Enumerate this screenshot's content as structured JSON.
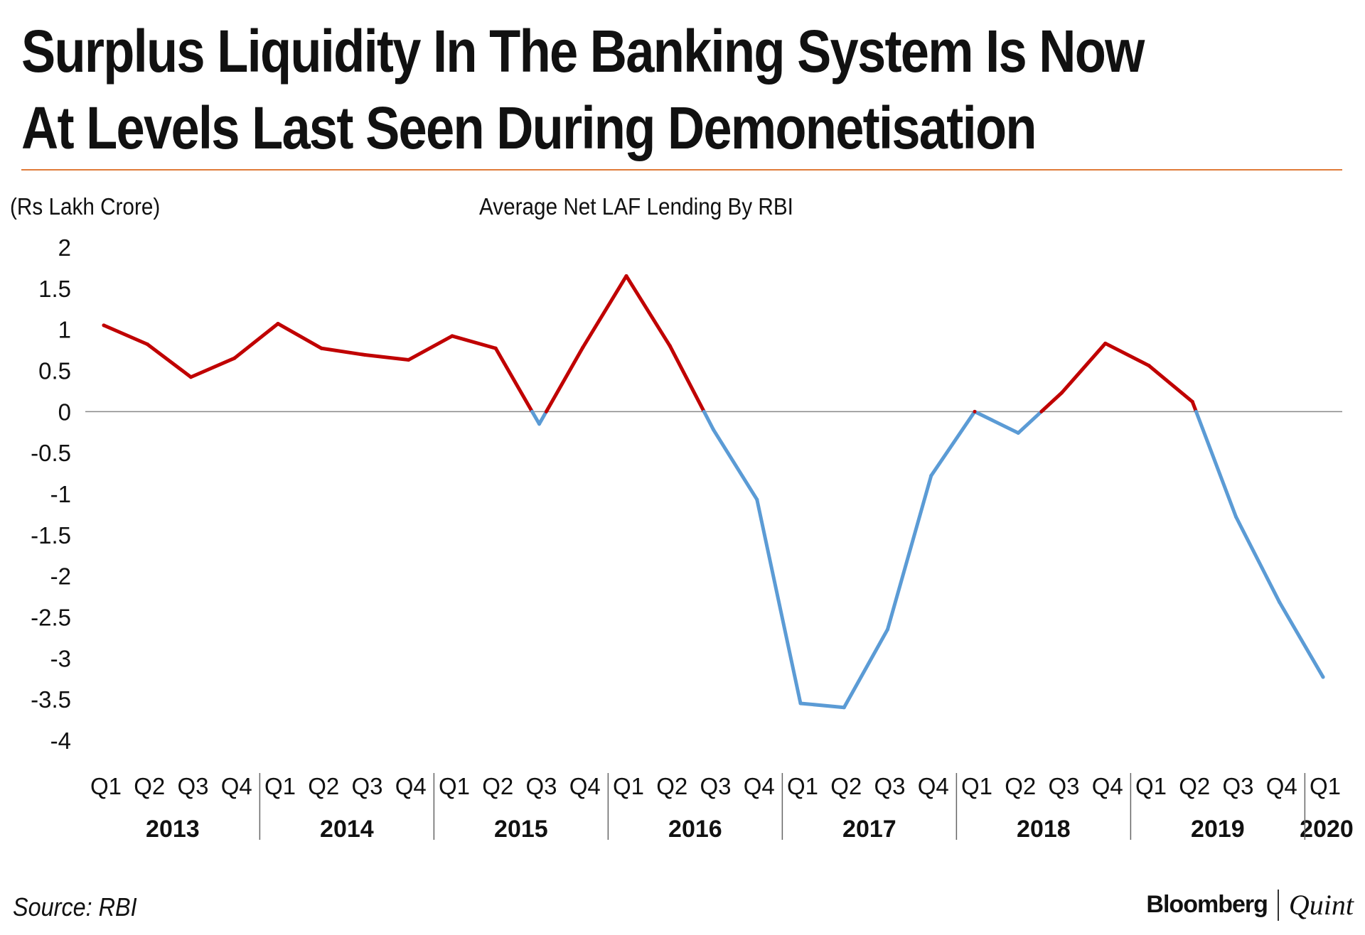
{
  "header": {
    "title_line1": "Surplus Liquidity In The Banking System Is Now",
    "title_line2": "At Levels Last Seen During Demonetisation"
  },
  "footer": {
    "source": "Source: RBI",
    "logo_primary": "Bloomberg",
    "logo_secondary": "Quint"
  },
  "colors": {
    "accent_rule": "#e07b39",
    "positive_line": "#c00000",
    "negative_line": "#5b9bd5",
    "zero_line": "#888888"
  },
  "chart_data": {
    "type": "line",
    "title": "Average Net LAF Lending By RBI",
    "ylabel": "(Rs Lakh Crore)",
    "xlabel": "",
    "ylim": [
      -4,
      2
    ],
    "yticks": [
      "2",
      "1.5",
      "1",
      "0.5",
      "0",
      "-0.5",
      "-1",
      "-1.5",
      "-2",
      "-2.5",
      "-3",
      "-3.5",
      "-4"
    ],
    "categories": [
      "Q1",
      "Q2",
      "Q3",
      "Q4",
      "Q1",
      "Q2",
      "Q3",
      "Q4",
      "Q1",
      "Q2",
      "Q3",
      "Q4",
      "Q1",
      "Q2",
      "Q3",
      "Q4",
      "Q1",
      "Q2",
      "Q3",
      "Q4",
      "Q1",
      "Q2",
      "Q3",
      "Q4",
      "Q1",
      "Q2",
      "Q3",
      "Q4",
      "Q1"
    ],
    "years": [
      {
        "label": "2013",
        "start": 0,
        "count": 4
      },
      {
        "label": "2014",
        "start": 4,
        "count": 4
      },
      {
        "label": "2015",
        "start": 8,
        "count": 4
      },
      {
        "label": "2016",
        "start": 12,
        "count": 4
      },
      {
        "label": "2017",
        "start": 16,
        "count": 4
      },
      {
        "label": "2018",
        "start": 20,
        "count": 4
      },
      {
        "label": "2019",
        "start": 24,
        "count": 4
      },
      {
        "label": "2020",
        "start": 28,
        "count": 1
      }
    ],
    "series": [
      {
        "name": "Average Net LAF Lending",
        "values": [
          1.05,
          0.82,
          0.42,
          0.65,
          1.07,
          0.77,
          0.69,
          0.63,
          0.92,
          0.77,
          -0.15,
          0.78,
          1.65,
          0.8,
          -0.22,
          -1.07,
          -3.55,
          -3.6,
          -2.65,
          -0.78,
          0.0,
          -0.26,
          0.23,
          0.83,
          0.56,
          0.12,
          -1.28,
          -2.32,
          -3.23
        ],
        "positive_color": "#c00000",
        "negative_color": "#5b9bd5"
      }
    ]
  }
}
